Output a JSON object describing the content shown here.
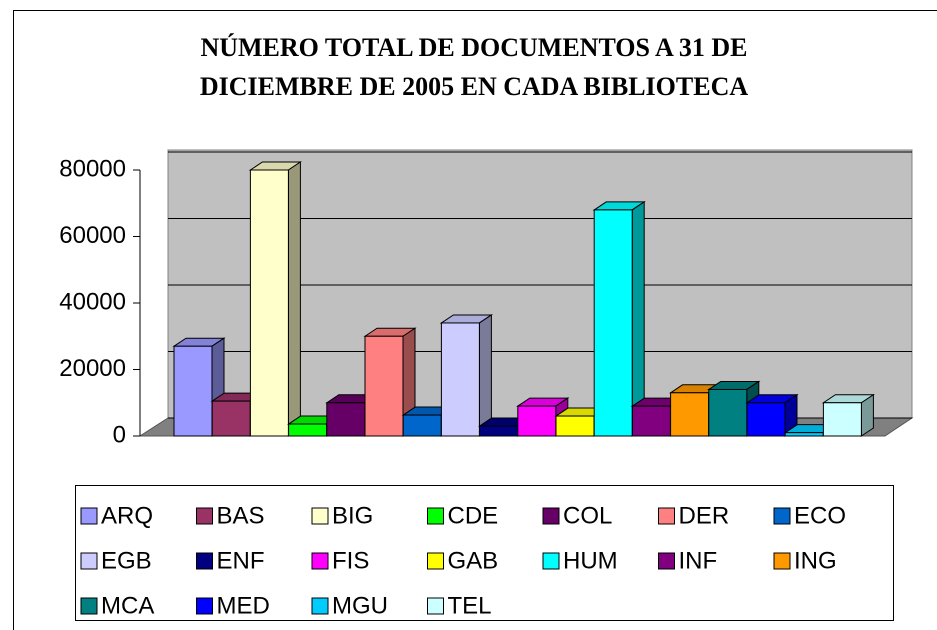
{
  "chart_data": {
    "type": "bar3d",
    "title": [
      "NÚMERO TOTAL DE DOCUMENTOS A 31 DE",
      "DICIEMBRE DE 2005 EN CADA BIBLIOTECA"
    ],
    "series": [
      {
        "name": "ARQ",
        "color": "#9999ff",
        "values": [
          27000
        ]
      },
      {
        "name": "BAS",
        "color": "#993366",
        "values": [
          10500
        ]
      },
      {
        "name": "BIG",
        "color": "#ffffcc",
        "values": [
          80000
        ]
      },
      {
        "name": "CDE",
        "color": "#00ff00",
        "values": [
          3600
        ]
      },
      {
        "name": "COL",
        "color": "#660066",
        "values": [
          10000
        ]
      },
      {
        "name": "DER",
        "color": "#ff8080",
        "values": [
          30000
        ]
      },
      {
        "name": "ECO",
        "color": "#0066cc",
        "values": [
          6300
        ]
      },
      {
        "name": "EGB",
        "color": "#ccccff",
        "values": [
          34000
        ]
      },
      {
        "name": "ENF",
        "color": "#000080",
        "values": [
          3000
        ]
      },
      {
        "name": "FIS",
        "color": "#ff00ff",
        "values": [
          9000
        ]
      },
      {
        "name": "GAB",
        "color": "#ffff00",
        "values": [
          6000
        ]
      },
      {
        "name": "HUM",
        "color": "#00ffff",
        "values": [
          68000
        ]
      },
      {
        "name": "INF",
        "color": "#800080",
        "values": [
          9000
        ]
      },
      {
        "name": "ING",
        "color": "#ff9900",
        "values": [
          13000
        ]
      },
      {
        "name": "MCA",
        "color": "#008080",
        "values": [
          14000
        ]
      },
      {
        "name": "MED",
        "color": "#0000ff",
        "values": [
          10000
        ]
      },
      {
        "name": "MGU",
        "color": "#00ccff",
        "values": [
          1000
        ]
      },
      {
        "name": "TEL",
        "color": "#ccffff",
        "values": [
          10000
        ]
      }
    ],
    "ylim": [
      0,
      80000
    ],
    "yticks": [
      0,
      20000,
      40000,
      60000,
      80000
    ],
    "grid": true,
    "legend": "bottom"
  }
}
